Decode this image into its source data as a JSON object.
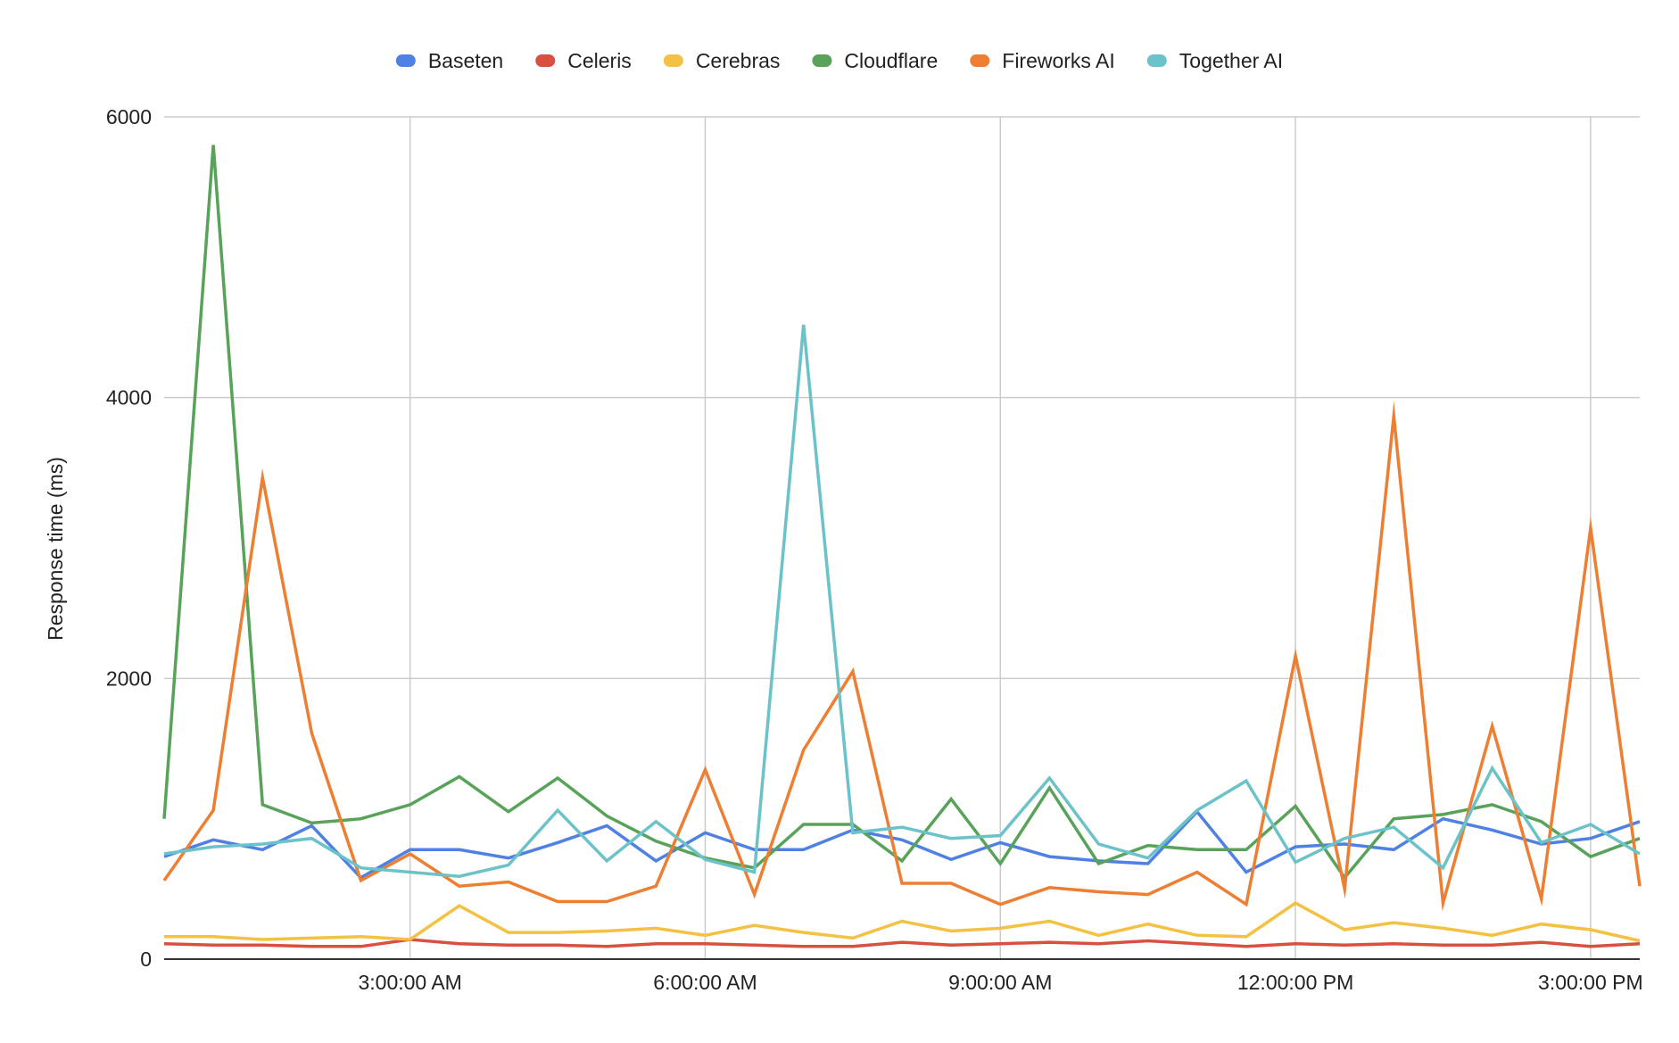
{
  "chart_data": {
    "type": "line",
    "title": "",
    "xlabel": "",
    "ylabel": "Response time (ms)",
    "ylim": [
      0,
      6000
    ],
    "xlim": [
      "12:30:00 AM",
      "3:30:00 PM"
    ],
    "yticks": [
      0,
      2000,
      4000,
      6000
    ],
    "xticks": [
      {
        "time": "3:00:00 AM",
        "label": "3:00:00 AM"
      },
      {
        "time": "6:00:00 AM",
        "label": "6:00:00 AM"
      },
      {
        "time": "9:00:00 AM",
        "label": "9:00:00 AM"
      },
      {
        "time": "12:00:00 PM",
        "label": "12:00:00 PM"
      },
      {
        "time": "3:00:00 PM",
        "label": "3:00:00 PM"
      }
    ],
    "grid": true,
    "legend_position": "top",
    "x": [
      "12:30:00 AM",
      "1:00:00 AM",
      "1:30:00 AM",
      "2:00:00 AM",
      "2:30:00 AM",
      "3:00:00 AM",
      "3:30:00 AM",
      "4:00:00 AM",
      "4:30:00 AM",
      "5:00:00 AM",
      "5:30:00 AM",
      "6:00:00 AM",
      "6:30:00 AM",
      "7:00:00 AM",
      "7:30:00 AM",
      "8:00:00 AM",
      "8:30:00 AM",
      "9:00:00 AM",
      "9:30:00 AM",
      "10:00:00 AM",
      "10:30:00 AM",
      "11:00:00 AM",
      "11:30:00 AM",
      "12:00:00 PM",
      "12:30:00 PM",
      "1:00:00 PM",
      "1:30:00 PM",
      "2:00:00 PM",
      "2:30:00 PM",
      "3:00:00 PM",
      "3:30:00 PM"
    ],
    "series": [
      {
        "name": "Baseten",
        "color": "#4f81e4",
        "values": [
          730,
          850,
          780,
          950,
          580,
          780,
          780,
          720,
          830,
          950,
          700,
          900,
          780,
          780,
          920,
          850,
          710,
          830,
          730,
          700,
          680,
          1050,
          620,
          800,
          820,
          780,
          1000,
          920,
          820,
          860,
          980
        ]
      },
      {
        "name": "Celeris",
        "color": "#d95040",
        "values": [
          110,
          100,
          100,
          90,
          90,
          140,
          110,
          100,
          100,
          90,
          110,
          110,
          100,
          90,
          90,
          120,
          100,
          110,
          120,
          110,
          130,
          110,
          90,
          110,
          100,
          110,
          100,
          100,
          120,
          90,
          110
        ]
      },
      {
        "name": "Cerebras",
        "color": "#f3c143",
        "values": [
          160,
          160,
          140,
          150,
          160,
          140,
          380,
          190,
          190,
          200,
          220,
          170,
          240,
          190,
          150,
          270,
          200,
          220,
          270,
          170,
          250,
          170,
          160,
          400,
          210,
          260,
          220,
          170,
          250,
          210,
          130
        ]
      },
      {
        "name": "Cloudflare",
        "color": "#58a25a",
        "values": [
          1000,
          5800,
          1100,
          970,
          1000,
          1100,
          1300,
          1050,
          1290,
          1020,
          840,
          720,
          650,
          960,
          960,
          700,
          1140,
          680,
          1220,
          680,
          810,
          780,
          780,
          1090,
          580,
          1000,
          1030,
          1100,
          980,
          730,
          860
        ]
      },
      {
        "name": "Fireworks AI",
        "color": "#ee7e32",
        "values": [
          560,
          1060,
          3430,
          1610,
          560,
          750,
          520,
          550,
          410,
          410,
          520,
          1350,
          460,
          1490,
          2050,
          540,
          540,
          390,
          510,
          480,
          460,
          620,
          390,
          2160,
          500,
          3870,
          400,
          1660,
          430,
          3070,
          520
        ]
      },
      {
        "name": "Together AI",
        "color": "#6cc2c9",
        "values": [
          750,
          800,
          820,
          860,
          650,
          620,
          590,
          670,
          1060,
          700,
          980,
          710,
          620,
          4520,
          900,
          940,
          860,
          880,
          1290,
          820,
          720,
          1060,
          1270,
          690,
          860,
          940,
          650,
          1360,
          830,
          960,
          750
        ]
      }
    ]
  }
}
